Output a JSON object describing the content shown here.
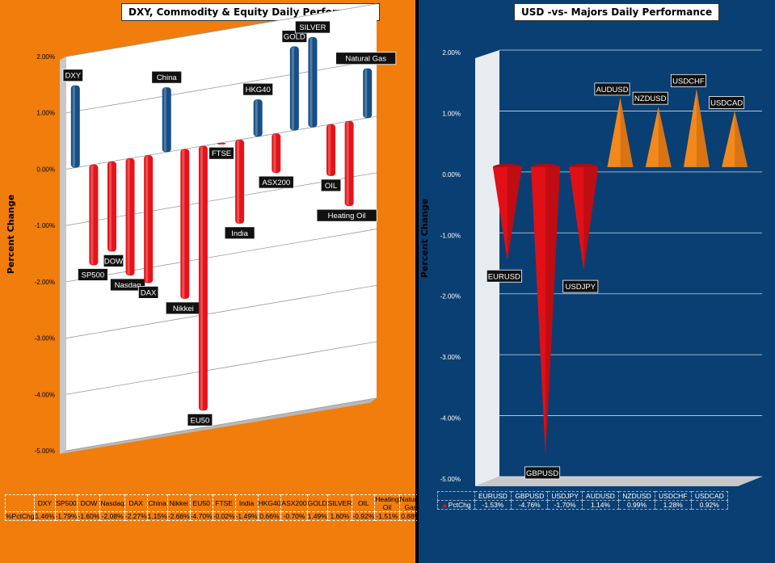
{
  "left": {
    "title": "DXY, Commodity  & Equity Daily Performance",
    "ylabel": "Percent Change",
    "row_label": "%PctChg",
    "chart_data": {
      "type": "bar",
      "title": "DXY, Commodity  & Equity Daily Performance",
      "ylabel": "Percent Change",
      "ylim": [
        -5.0,
        2.0
      ],
      "yticks": [
        "2.00%",
        "1.00%",
        "0.00%",
        "-1.00%",
        "-2.00%",
        "-3.00%",
        "-4.00%",
        "-5.00%"
      ],
      "categories": [
        "DXY",
        "SP500",
        "DOW",
        "Nasdaq",
        "DAX",
        "China",
        "Nikkei",
        "EU50",
        "FTSE",
        "India",
        "HKG40",
        "ASX200",
        "GOLD",
        "SILVER",
        "OIL",
        "Heating Oil",
        "Natural Gas"
      ],
      "bar_labels": [
        "DXY",
        "SP500",
        "DOW",
        "Nasdaq",
        "DAX",
        "China",
        "Nikkei",
        "EU50",
        "FTSE",
        "India",
        "HKG40",
        "ASX200",
        "GOLD",
        "SILVER",
        "OIL",
        "Heating Oil",
        "Natural Gas"
      ],
      "values": [
        1.46,
        -1.79,
        -1.6,
        -2.08,
        -2.27,
        1.15,
        -2.66,
        -4.7,
        -0.02,
        -1.49,
        0.66,
        -0.7,
        1.49,
        1.6,
        -0.92,
        -1.51,
        0.88
      ],
      "value_labels": [
        "1.46%",
        "-1.79%",
        "-1.60%",
        "-2.08%",
        "-2.27%",
        "1.15%",
        "-2.66%",
        "-4.70%",
        "-0.02%",
        "-1.49%",
        "0.66%",
        "-0.70%",
        "1.49%",
        "1.60%",
        "-0.92%",
        "-1.51%",
        "0.88%"
      ],
      "grid": true
    }
  },
  "right": {
    "title": "USD -vs- Majors Daily Performance",
    "ylabel": "Percent Change",
    "row_label": "PctChg",
    "chart_data": {
      "type": "bar",
      "title": "USD -vs- Majors Daily Performance",
      "ylabel": "Percent Change",
      "ylim": [
        -5.0,
        2.0
      ],
      "yticks": [
        "2.00%",
        "1.00%",
        "0.00%",
        "-1.00%",
        "-2.00%",
        "-3.00%",
        "-4.00%",
        "-5.00%"
      ],
      "categories": [
        "EURUSD",
        "GBPUSD",
        "USDJPY",
        "AUDUSD",
        "NZDUSD",
        "USDCHF",
        "USDCAD"
      ],
      "values": [
        -1.53,
        -4.76,
        -1.7,
        1.14,
        0.99,
        1.28,
        0.92
      ],
      "value_labels": [
        "-1.53%",
        "-4.76%",
        "-1.70%",
        "1.14%",
        "0.99%",
        "1.28%",
        "0.92%"
      ],
      "grid": true
    }
  },
  "colors": {
    "left_bg": "#f07d0c",
    "right_bg": "#0a3f73",
    "pos_bar": "#164e85",
    "neg_bar": "#e4141a",
    "pos_cone": "#f3891a",
    "neg_cone": "#e01016"
  }
}
